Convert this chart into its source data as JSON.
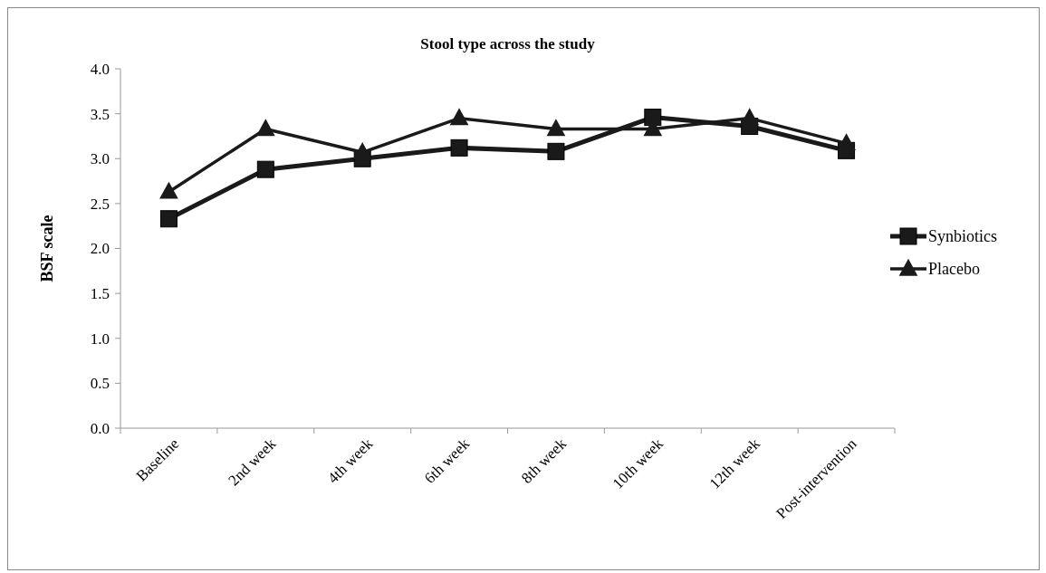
{
  "chart_data": {
    "type": "line",
    "title": "Stool type across the study",
    "ylabel": "BSF scale",
    "categories": [
      "Baseline",
      "2nd week",
      "4th week",
      "6th week",
      "8th week",
      "10th week",
      "12th week",
      "Post-intervention"
    ],
    "series": [
      {
        "name": "Synbiotics",
        "color": "#1a1a1a",
        "marker": "square",
        "values": [
          2.33,
          2.88,
          3.0,
          3.12,
          3.08,
          3.46,
          3.36,
          3.09
        ]
      },
      {
        "name": "Placebo",
        "color": "#1a1a1a",
        "marker": "triangle",
        "values": [
          2.63,
          3.33,
          3.07,
          3.45,
          3.33,
          3.33,
          3.45,
          3.17
        ]
      }
    ],
    "ylim": [
      0,
      4
    ],
    "yticks": [
      {
        "value": 0,
        "label": "0.0"
      },
      {
        "value": 0.5,
        "label": "0.5"
      },
      {
        "value": 1,
        "label": "1.0"
      },
      {
        "value": 1.5,
        "label": "1.5"
      },
      {
        "value": 2,
        "label": "2.0"
      },
      {
        "value": 2.5,
        "label": "2.5"
      },
      {
        "value": 3,
        "label": "3.0"
      },
      {
        "value": 3.5,
        "label": "3.5"
      },
      {
        "value": 4,
        "label": "4.0"
      }
    ],
    "legend": "right",
    "grid": false
  }
}
